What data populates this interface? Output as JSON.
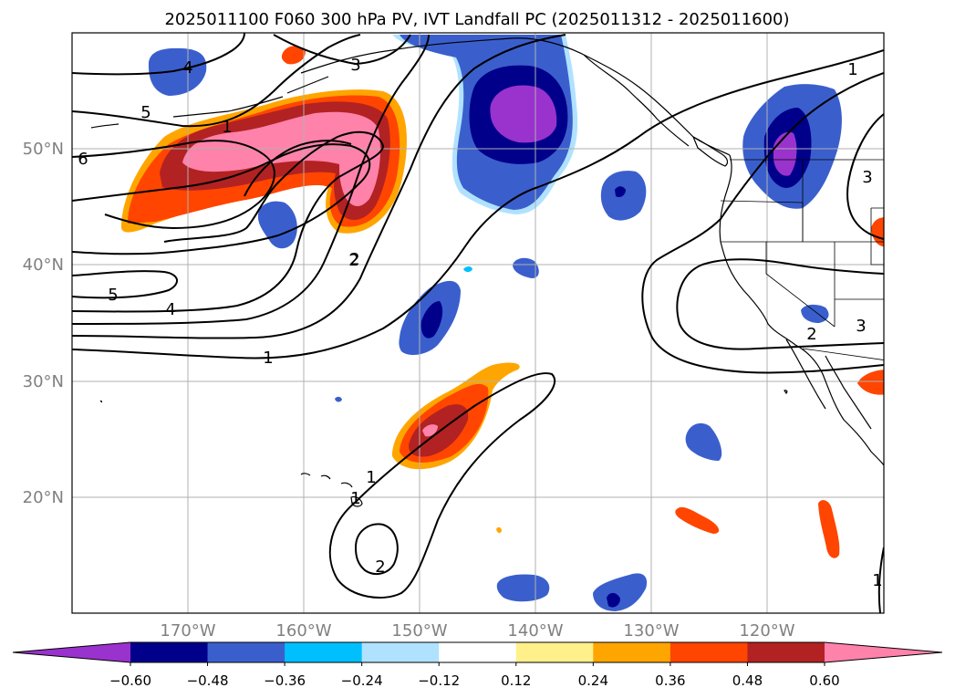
{
  "title": "2025011100 F060 300 hPa PV, IVT Landfall PC (2025011312 - 2025011600)",
  "lat_labels": [
    {
      "text": "50°N",
      "lat": 50
    },
    {
      "text": "40°N",
      "lat": 40
    },
    {
      "text": "30°N",
      "lat": 30
    },
    {
      "text": "20°N",
      "lat": 20
    }
  ],
  "lon_labels": [
    {
      "text": "170°W",
      "lon": -170
    },
    {
      "text": "160°W",
      "lon": -160
    },
    {
      "text": "150°W",
      "lon": -150
    },
    {
      "text": "140°W",
      "lon": -140
    },
    {
      "text": "130°W",
      "lon": -130
    },
    {
      "text": "120°W",
      "lon": -120
    }
  ],
  "map_extent": {
    "lon_min": -180,
    "lon_max": -110,
    "lat_min": 10,
    "lat_max": 60
  },
  "colorbar": {
    "levels": [
      "−0.60",
      "−0.48",
      "−0.36",
      "−0.24",
      "−0.12",
      "0.12",
      "0.24",
      "0.36",
      "0.48",
      "0.60"
    ],
    "colors": [
      "#9a32cd",
      "#00008b",
      "#3a5fcd",
      "#00bfff",
      "#b0e2ff",
      "#ffffff",
      "#fff08a",
      "#ffa500",
      "#ff4500",
      "#b22222",
      "#ff82ab"
    ]
  },
  "contour_labels": [
    "1",
    "2",
    "3",
    "4",
    "5",
    "6",
    "1",
    "5",
    "4",
    "1",
    "2",
    "2",
    "1",
    "1",
    "2",
    "3",
    "3",
    "1"
  ],
  "colors": {
    "grid": "#b0b0b0",
    "coast": "#000000",
    "contour": "#000000",
    "tick_label": "#808080"
  }
}
